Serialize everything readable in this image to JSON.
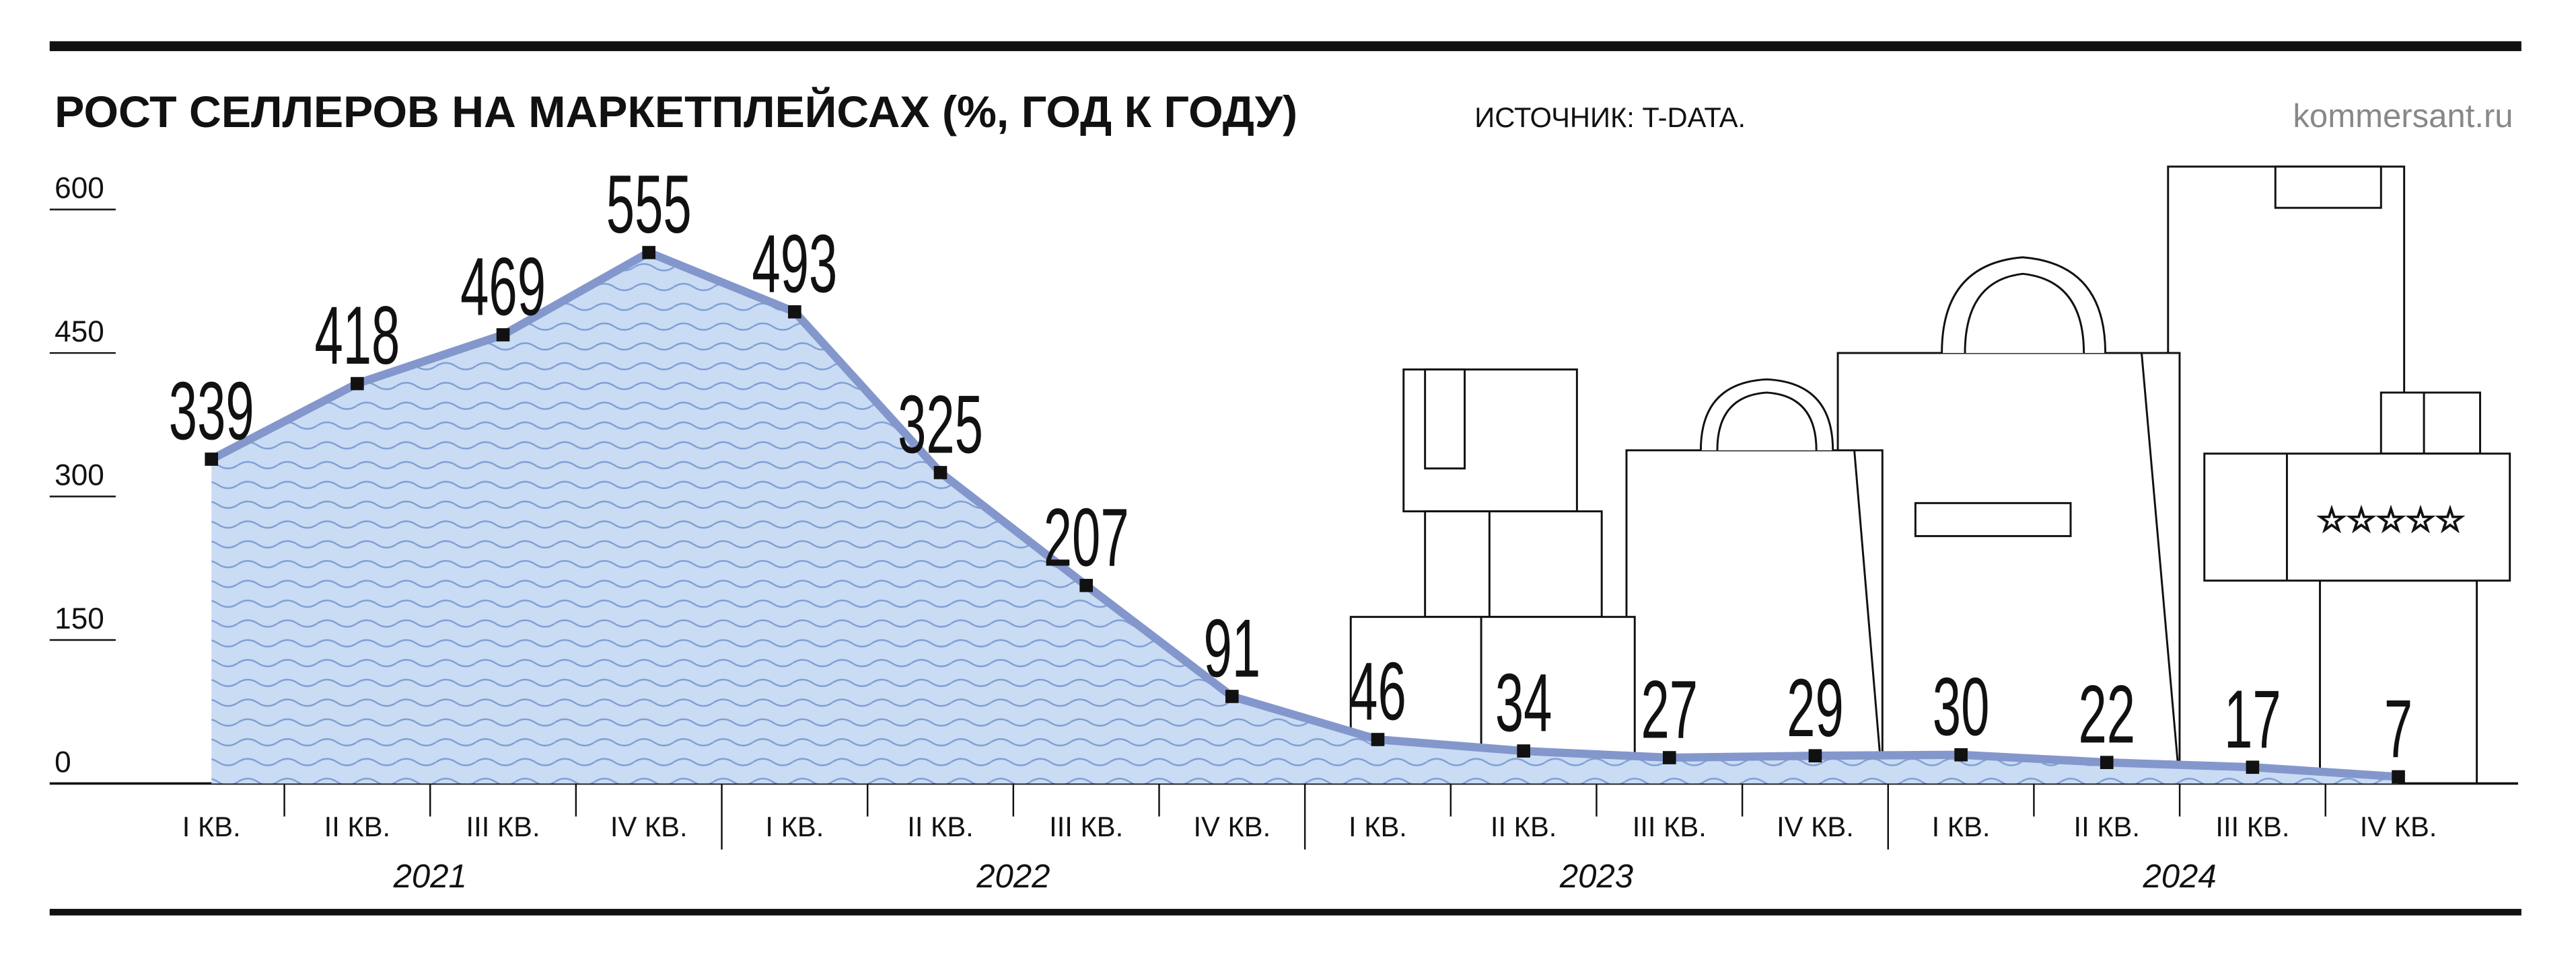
{
  "chart_data": {
    "type": "area",
    "title": "РОСТ СЕЛЛЕРОВ НА МАРКЕТПЛЕЙСАХ (%, ГОД К ГОДУ)",
    "source": "ИСТОЧНИК: T-DATA.",
    "brand": "kommersant.ru",
    "categories": [
      "I КВ.",
      "II КВ.",
      "III КВ.",
      "IV КВ.",
      "I КВ.",
      "II КВ.",
      "III КВ.",
      "IV КВ.",
      "I КВ.",
      "II КВ.",
      "III КВ.",
      "IV КВ.",
      "I КВ.",
      "II КВ.",
      "III КВ.",
      "IV КВ."
    ],
    "years": [
      "2021",
      "2022",
      "2023",
      "2024"
    ],
    "values": [
      339,
      418,
      469,
      555,
      493,
      325,
      207,
      91,
      46,
      34,
      27,
      29,
      30,
      22,
      17,
      7
    ],
    "color": "#8497cc",
    "ylim": [
      0,
      600
    ],
    "yticks": [
      0,
      150,
      300,
      450,
      600
    ]
  }
}
